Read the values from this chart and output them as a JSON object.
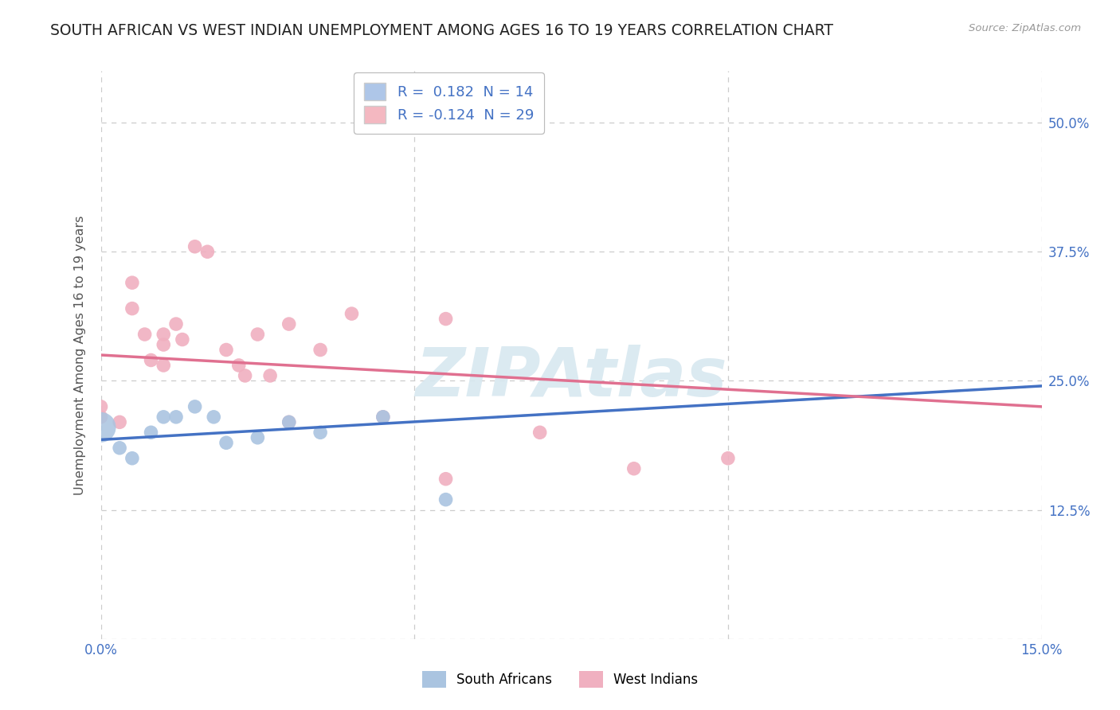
{
  "title": "SOUTH AFRICAN VS WEST INDIAN UNEMPLOYMENT AMONG AGES 16 TO 19 YEARS CORRELATION CHART",
  "source": "Source: ZipAtlas.com",
  "ylabel": "Unemployment Among Ages 16 to 19 years",
  "xlim": [
    0.0,
    0.15
  ],
  "ylim": [
    0.0,
    0.55
  ],
  "yticks": [
    0.0,
    0.125,
    0.25,
    0.375,
    0.5
  ],
  "ytick_labels_left": [
    "",
    "",
    "",
    "",
    ""
  ],
  "ytick_labels_right": [
    "",
    "12.5%",
    "25.0%",
    "37.5%",
    "50.0%"
  ],
  "xticks": [
    0.0,
    0.05,
    0.1,
    0.15
  ],
  "xtick_labels": [
    "0.0%",
    "",
    "",
    "15.0%"
  ],
  "legend_r_items": [
    {
      "label_prefix": "R = ",
      "r_val": " 0.182",
      "label_mid": "  N = ",
      "n_val": "14",
      "color": "#aec6e8"
    },
    {
      "label_prefix": "R = ",
      "r_val": "-0.124",
      "label_mid": "  N = ",
      "n_val": "29",
      "color": "#f4b8c1"
    }
  ],
  "south_african_points": [
    [
      0.0,
      0.205
    ],
    [
      0.003,
      0.185
    ],
    [
      0.005,
      0.175
    ],
    [
      0.008,
      0.2
    ],
    [
      0.01,
      0.215
    ],
    [
      0.012,
      0.215
    ],
    [
      0.015,
      0.225
    ],
    [
      0.018,
      0.215
    ],
    [
      0.02,
      0.19
    ],
    [
      0.025,
      0.195
    ],
    [
      0.03,
      0.21
    ],
    [
      0.035,
      0.2
    ],
    [
      0.045,
      0.215
    ],
    [
      0.055,
      0.135
    ]
  ],
  "sa_large_idx": 0,
  "west_indian_points": [
    [
      0.0,
      0.215
    ],
    [
      0.0,
      0.225
    ],
    [
      0.003,
      0.21
    ],
    [
      0.005,
      0.345
    ],
    [
      0.005,
      0.32
    ],
    [
      0.007,
      0.295
    ],
    [
      0.008,
      0.27
    ],
    [
      0.01,
      0.295
    ],
    [
      0.01,
      0.285
    ],
    [
      0.01,
      0.265
    ],
    [
      0.012,
      0.305
    ],
    [
      0.013,
      0.29
    ],
    [
      0.015,
      0.38
    ],
    [
      0.017,
      0.375
    ],
    [
      0.02,
      0.28
    ],
    [
      0.022,
      0.265
    ],
    [
      0.023,
      0.255
    ],
    [
      0.025,
      0.295
    ],
    [
      0.027,
      0.255
    ],
    [
      0.03,
      0.305
    ],
    [
      0.03,
      0.21
    ],
    [
      0.035,
      0.28
    ],
    [
      0.04,
      0.315
    ],
    [
      0.045,
      0.215
    ],
    [
      0.055,
      0.31
    ],
    [
      0.055,
      0.155
    ],
    [
      0.07,
      0.2
    ],
    [
      0.085,
      0.165
    ],
    [
      0.1,
      0.175
    ]
  ],
  "sa_line_color": "#4472c4",
  "wi_line_color": "#e07090",
  "sa_scatter_color": "#aac4e0",
  "wi_scatter_color": "#f0b0c0",
  "background_color": "#ffffff",
  "grid_color": "#cccccc",
  "title_color": "#222222",
  "title_fontsize": 13.5,
  "axis_label_color": "#555555",
  "tick_color": "#4472c4",
  "watermark_text": "ZIPAtlas",
  "watermark_color": "#d8e8f0",
  "bottom_legend": [
    {
      "label": "South Africans",
      "color": "#aac4e0"
    },
    {
      "label": "West Indians",
      "color": "#f0b0c0"
    }
  ],
  "sa_line_start_x": 0.0,
  "sa_line_end_x": 0.15,
  "wi_line_start_x": 0.0,
  "wi_line_end_x": 0.15,
  "dashed_line_color": "#90b8d8",
  "dashed_line_start_x": 0.06,
  "dashed_line_end_x": 0.15
}
